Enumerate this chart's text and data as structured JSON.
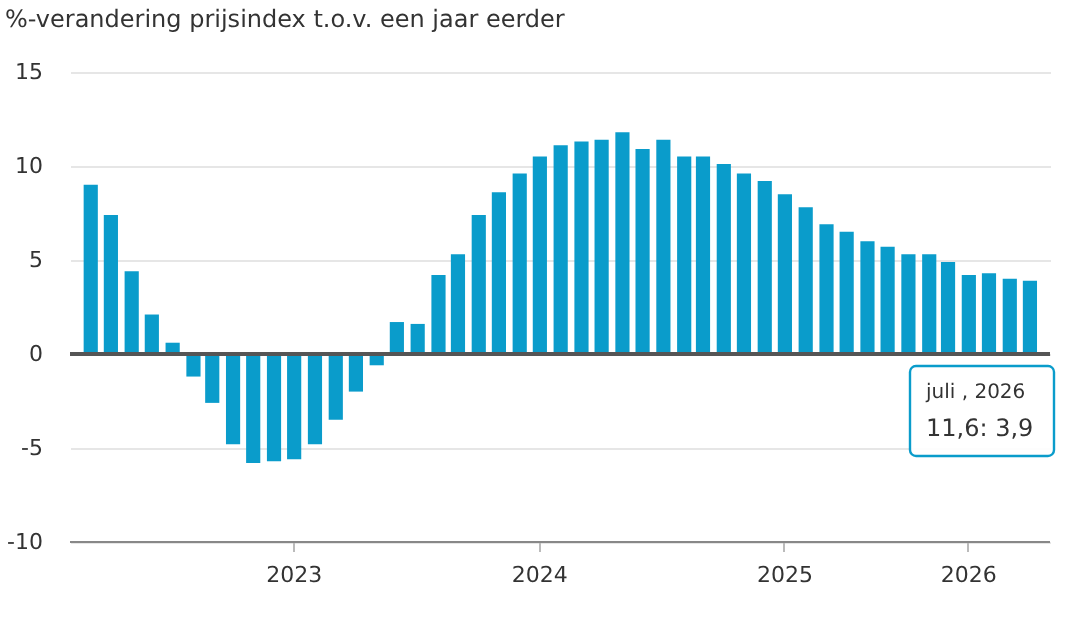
{
  "chart_data": {
    "type": "bar",
    "ylabel": "%-verandering prijsindex t.o.v. een jaar eerder",
    "x": [
      "2022-09",
      "2022-10",
      "2022-11",
      "2022-12",
      "2023-01",
      "2023-02",
      "2023-03",
      "2023-04",
      "2023-05",
      "2023-06",
      "2023-07",
      "2023-08",
      "2023-09",
      "2023-10",
      "2023-11",
      "2023-12",
      "2024-01",
      "2024-02",
      "2024-03",
      "2024-04",
      "2024-05",
      "2024-06",
      "2024-07",
      "2024-08",
      "2024-09",
      "2024-10",
      "2024-11",
      "2024-12",
      "2025-01",
      "2025-02",
      "2025-03",
      "2025-04",
      "2025-05",
      "2025-06",
      "2025-07",
      "2025-08",
      "2025-09",
      "2025-10",
      "2025-11",
      "2025-12",
      "2026-01",
      "2026-02",
      "2026-03",
      "2026-04",
      "2026-05",
      "2026-06",
      "2026-07"
    ],
    "values": [
      9.0,
      7.4,
      4.4,
      2.1,
      0.6,
      -1.2,
      -2.6,
      -4.8,
      -5.8,
      -5.7,
      -5.6,
      -4.8,
      -3.5,
      -2.0,
      -0.6,
      1.7,
      1.6,
      4.2,
      5.3,
      7.4,
      8.6,
      9.6,
      10.5,
      11.1,
      11.3,
      11.4,
      11.8,
      10.9,
      11.4,
      10.5,
      10.5,
      10.1,
      9.6,
      9.2,
      8.5,
      7.8,
      6.9,
      6.5,
      6.0,
      5.7,
      5.3,
      5.3,
      4.9,
      4.2,
      4.3,
      4.0,
      3.9
    ],
    "color": "#0a9ccb",
    "xlim": [
      "2022-08-16",
      "2026-07-16"
    ],
    "xticks": [
      {
        "value": "2023-07",
        "label": "2023"
      },
      {
        "value": "2024-07",
        "label": "2024"
      },
      {
        "value": "2025-07",
        "label": "2025"
      },
      {
        "value": "2026-04",
        "label": "2026"
      }
    ],
    "ylim": [
      -10,
      15
    ],
    "yticks": [
      -10,
      -5,
      0,
      5,
      10,
      15
    ],
    "grid": "y",
    "ref_lines": [
      {
        "axis": "y",
        "value": 0,
        "label": null,
        "color": "#555555"
      }
    ],
    "annotations": [
      "juli , 2026",
      "11,6: 3,9"
    ]
  }
}
